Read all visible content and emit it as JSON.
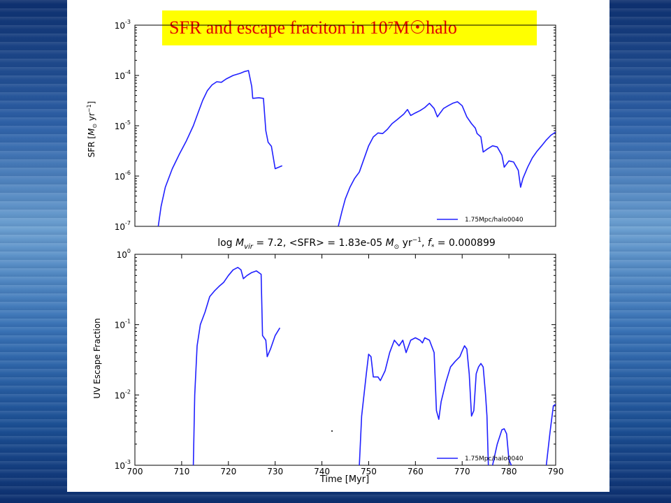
{
  "banner": {
    "text_before": "SFR and escape fraciton in 10",
    "exponent": "7",
    "text_after": " M☉halo"
  },
  "summary": "log M_vir = 7.2, <SFR> = 1.83e-05 M☉ yr⁻¹, f* = 0.000899",
  "summary_parts": {
    "log": "log ",
    "mvir": "M",
    "vir": "vir",
    "mid": " = 7.2, <SFR> = 1.83e-05 ",
    "msun": "M",
    "sun": "⊙",
    "yr": " yr",
    "yrexp": "−1",
    "comma": ", ",
    "f": "f",
    "fsub": "*",
    "end": " = 0.000899"
  },
  "chart_data": [
    {
      "type": "line",
      "ylabel": "SFR [M⊙ yr⁻¹]",
      "ylabel_parts": {
        "a": "SFR [",
        "m": "M",
        "sun": "⊙",
        "yr": " yr",
        "exp": "−1",
        "b": "]"
      },
      "ylog": true,
      "ylim": [
        1e-07,
        0.001
      ],
      "xlim": [
        700,
        790
      ],
      "yticks": [
        {
          "value": 1e-07,
          "base": "10",
          "exp": "-7"
        },
        {
          "value": 1e-06,
          "base": "10",
          "exp": "-6"
        },
        {
          "value": 1e-05,
          "base": "10",
          "exp": "-5"
        },
        {
          "value": 0.0001,
          "base": "10",
          "exp": "-4"
        },
        {
          "value": 0.001,
          "base": "10",
          "exp": "-3"
        }
      ],
      "legend": "1.75Mpc/halo0040",
      "legend_position": "lower right",
      "color": "#2020ff",
      "segments": [
        [
          [
            705.0,
            1e-07
          ],
          [
            705.6,
            2.5e-07
          ],
          [
            706.5,
            6e-07
          ],
          [
            708,
            1.4e-06
          ],
          [
            709.5,
            2.7e-06
          ],
          [
            711,
            5e-06
          ],
          [
            712.5,
            1e-05
          ],
          [
            713.5,
            1.8e-05
          ],
          [
            714.5,
            3.2e-05
          ],
          [
            715.5,
            5e-05
          ],
          [
            716.5,
            6.5e-05
          ],
          [
            717.5,
            7.5e-05
          ],
          [
            718.5,
            7.3e-05
          ],
          [
            719.5,
            8.5e-05
          ],
          [
            721,
            0.0001
          ],
          [
            722.5,
            0.00011
          ],
          [
            723.5,
            0.00012
          ],
          [
            724.3,
            0.000125
          ],
          [
            725,
            6e-05
          ],
          [
            725.2,
            3.5e-05
          ],
          [
            726.5,
            3.6e-05
          ],
          [
            727.5,
            3.5e-05
          ],
          [
            728,
            8e-06
          ],
          [
            728.5,
            4.7e-06
          ],
          [
            729.2,
            3.9e-06
          ],
          [
            730,
            1.4e-06
          ],
          [
            731.5,
            1.6e-06
          ]
        ],
        [
          [
            743.5,
            1e-07
          ],
          [
            744.3,
            2e-07
          ],
          [
            745,
            3.5e-07
          ],
          [
            746,
            6e-07
          ],
          [
            747,
            9e-07
          ],
          [
            748,
            1.2e-06
          ],
          [
            749,
            2.2e-06
          ],
          [
            750,
            4e-06
          ],
          [
            751,
            6e-06
          ],
          [
            752,
            7.2e-06
          ],
          [
            753,
            7e-06
          ],
          [
            754,
            8.5e-06
          ],
          [
            755,
            1.1e-05
          ],
          [
            756,
            1.3e-05
          ],
          [
            757.5,
            1.7e-05
          ],
          [
            758.3,
            2.1e-05
          ],
          [
            759,
            1.6e-05
          ],
          [
            760,
            1.8e-05
          ],
          [
            761,
            2e-05
          ],
          [
            762,
            2.3e-05
          ],
          [
            763,
            2.8e-05
          ],
          [
            764,
            2.2e-05
          ],
          [
            764.7,
            1.5e-05
          ],
          [
            765.3,
            1.8e-05
          ],
          [
            766,
            2.2e-05
          ],
          [
            767,
            2.5e-05
          ],
          [
            768,
            2.8e-05
          ],
          [
            769,
            3e-05
          ],
          [
            770,
            2.5e-05
          ],
          [
            771,
            1.5e-05
          ],
          [
            772,
            1.1e-05
          ],
          [
            772.8,
            9e-06
          ],
          [
            773.2,
            7e-06
          ],
          [
            774,
            6e-06
          ],
          [
            774.5,
            3e-06
          ],
          [
            775.5,
            3.5e-06
          ],
          [
            776.5,
            4e-06
          ],
          [
            777.5,
            3.8e-06
          ],
          [
            778.5,
            2.6e-06
          ],
          [
            779,
            1.5e-06
          ],
          [
            780,
            2e-06
          ],
          [
            781,
            1.9e-06
          ],
          [
            782,
            1.3e-06
          ],
          [
            782.5,
            6e-07
          ],
          [
            783,
            9e-07
          ],
          [
            784,
            1.5e-06
          ],
          [
            785,
            2.3e-06
          ],
          [
            786,
            3.1e-06
          ],
          [
            787,
            4e-06
          ],
          [
            788,
            5.2e-06
          ],
          [
            789,
            6.5e-06
          ],
          [
            790,
            7.5e-06
          ],
          [
            791,
            8.3e-06
          ]
        ]
      ]
    },
    {
      "type": "line",
      "ylabel": "UV Escape Fraction",
      "xlabel": "Time [Myr]",
      "ylog": true,
      "ylim": [
        0.001,
        1
      ],
      "xlim": [
        700,
        790
      ],
      "xticks": [
        700,
        710,
        720,
        730,
        740,
        750,
        760,
        770,
        780,
        790
      ],
      "yticks": [
        {
          "value": 0.001,
          "base": "10",
          "exp": "-3"
        },
        {
          "value": 0.01,
          "base": "10",
          "exp": "-2"
        },
        {
          "value": 0.1,
          "base": "10",
          "exp": "-1"
        },
        {
          "value": 1,
          "base": "10",
          "exp": "0"
        }
      ],
      "legend": "1.75Mpc/halo0040",
      "legend_position": "lower right",
      "color": "#2020ff",
      "segments": [
        [
          [
            712.5,
            0.001
          ],
          [
            712.8,
            0.01
          ],
          [
            713.3,
            0.05
          ],
          [
            714,
            0.1
          ],
          [
            715,
            0.15
          ],
          [
            716,
            0.25
          ],
          [
            717,
            0.3
          ],
          [
            718,
            0.35
          ],
          [
            719,
            0.4
          ],
          [
            720,
            0.5
          ],
          [
            721,
            0.6
          ],
          [
            722,
            0.65
          ],
          [
            722.7,
            0.6
          ],
          [
            723.2,
            0.45
          ],
          [
            724,
            0.5
          ],
          [
            725,
            0.55
          ],
          [
            726,
            0.58
          ],
          [
            727,
            0.52
          ],
          [
            727.3,
            0.07
          ],
          [
            728,
            0.06
          ],
          [
            728.3,
            0.035
          ],
          [
            729,
            0.045
          ],
          [
            730,
            0.07
          ],
          [
            731,
            0.09
          ]
        ],
        [
          [
            748,
            0.001
          ],
          [
            748.5,
            0.005
          ],
          [
            749.5,
            0.02
          ],
          [
            750,
            0.038
          ],
          [
            750.5,
            0.035
          ],
          [
            751,
            0.018
          ],
          [
            752,
            0.018
          ],
          [
            752.5,
            0.016
          ],
          [
            753.5,
            0.022
          ],
          [
            754.5,
            0.04
          ],
          [
            755.5,
            0.06
          ],
          [
            756.5,
            0.05
          ],
          [
            757.3,
            0.06
          ],
          [
            758,
            0.04
          ],
          [
            759,
            0.06
          ],
          [
            760,
            0.065
          ],
          [
            761,
            0.06
          ],
          [
            761.5,
            0.055
          ],
          [
            762,
            0.065
          ],
          [
            763,
            0.06
          ],
          [
            764,
            0.04
          ],
          [
            764.5,
            0.006
          ],
          [
            765,
            0.0045
          ],
          [
            765.5,
            0.008
          ],
          [
            766.5,
            0.015
          ],
          [
            767.5,
            0.025
          ],
          [
            768.5,
            0.03
          ],
          [
            769.5,
            0.035
          ],
          [
            770,
            0.042
          ],
          [
            770.5,
            0.05
          ],
          [
            771,
            0.045
          ],
          [
            771.5,
            0.02
          ],
          [
            772,
            0.005
          ],
          [
            772.5,
            0.006
          ],
          [
            773,
            0.02
          ],
          [
            773.5,
            0.025
          ],
          [
            774,
            0.028
          ],
          [
            774.5,
            0.025
          ],
          [
            775,
            0.01
          ],
          [
            775.3,
            0.005
          ],
          [
            775.6,
            0.001
          ]
        ],
        [
          [
            776.5,
            0.001
          ],
          [
            777.5,
            0.002
          ],
          [
            778.5,
            0.0032
          ],
          [
            779,
            0.0033
          ],
          [
            779.5,
            0.0028
          ],
          [
            780,
            0.0012
          ],
          [
            780.5,
            0.001
          ]
        ],
        [
          [
            788,
            0.001
          ],
          [
            788.8,
            0.003
          ],
          [
            789.5,
            0.007
          ],
          [
            790.2,
            0.0075
          ],
          [
            791,
            0.0072
          ]
        ]
      ]
    }
  ]
}
